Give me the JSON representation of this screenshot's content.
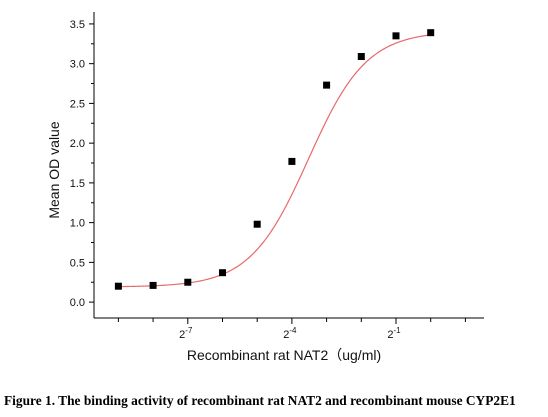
{
  "chart_data": {
    "type": "scatter",
    "xlabel": "Recombinant rat NAT2（ug/ml)",
    "ylabel": "Mean OD value",
    "x_scale": "log2",
    "x_ticks": [
      {
        "value": 0.0078125,
        "base": "2",
        "exp": "-7"
      },
      {
        "value": 0.0625,
        "base": "2",
        "exp": "-4"
      },
      {
        "value": 0.5,
        "base": "2",
        "exp": "-1"
      }
    ],
    "xlim": [
      0.0012,
      2.9
    ],
    "ylim": [
      -0.2,
      3.65
    ],
    "y_ticks": [
      "0.0",
      "0.5",
      "1.0",
      "1.5",
      "2.0",
      "2.5",
      "3.0",
      "3.5"
    ],
    "series": [
      {
        "marker": "square",
        "color": "#000000",
        "x": [
          0.001953,
          0.003906,
          0.007813,
          0.015625,
          0.03125,
          0.0625,
          0.125,
          0.25,
          0.5,
          1.0
        ],
        "y": [
          0.2,
          0.21,
          0.25,
          0.37,
          0.98,
          1.77,
          2.73,
          3.09,
          3.35,
          3.39
        ]
      }
    ],
    "fit": {
      "type": "four-parameter logistic",
      "color": "#e8696a",
      "bottom": 0.19,
      "top": 3.41,
      "ec50": 0.087,
      "hill": 1.72
    }
  },
  "caption": "Figure 1. The binding activity of recombinant rat NAT2 and recombinant mouse CYP2E1"
}
